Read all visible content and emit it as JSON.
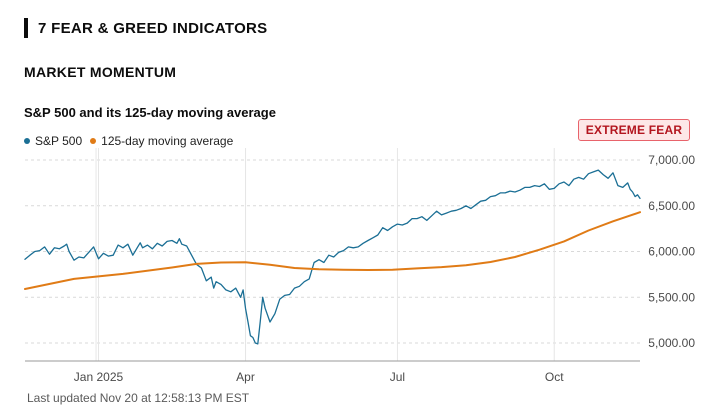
{
  "section": {
    "title": "7 FEAR & GREED INDICATORS"
  },
  "subsection": {
    "title": "MARKET MOMENTUM"
  },
  "legend": {
    "sp500": "S&P 500",
    "ma": "125-day moving average"
  },
  "badge": {
    "label": "EXTREME FEAR",
    "color": "#e8636b"
  },
  "footer": {
    "updated": "Last updated Nov 20 at 12:58:13 PM EST"
  },
  "colors": {
    "sp500": "#1b6f95",
    "ma": "#e07b16",
    "grid": "#d9d9d9",
    "axis": "#9a9a9a"
  },
  "chart_data": {
    "type": "line",
    "title": "S&P 500 and its 125-day moving average",
    "xlabel": "",
    "ylabel": "",
    "x_unit": "trading days from 2024-11-20",
    "xlim": [
      0,
      251
    ],
    "ylim": [
      4800,
      7000
    ],
    "y_ticks": [
      5000,
      5500,
      6000,
      6500,
      7000
    ],
    "y_tick_labels": [
      "5,000.00",
      "5,500.00",
      "6,000.00",
      "6,500.00",
      "7,000.00"
    ],
    "x_ticks": [
      {
        "label": "",
        "x": 29
      },
      {
        "label": "Jan 2025",
        "x": 30
      },
      {
        "label": "Apr",
        "x": 90
      },
      {
        "label": "Jul",
        "x": 152
      },
      {
        "label": "Oct",
        "x": 216
      }
    ],
    "grid": true,
    "series": [
      {
        "name": "S&P 500",
        "x": [
          0,
          2,
          4,
          6,
          8,
          10,
          12,
          14,
          16,
          17,
          18,
          20,
          22,
          24,
          26,
          28,
          30,
          32,
          34,
          36,
          38,
          40,
          42,
          44,
          46,
          47,
          48,
          50,
          52,
          54,
          56,
          58,
          60,
          62,
          63,
          64,
          66,
          68,
          70,
          72,
          74,
          76,
          77,
          78,
          80,
          82,
          84,
          86,
          88,
          89,
          90,
          91,
          92,
          93,
          94,
          95,
          96,
          97,
          98,
          100,
          102,
          104,
          106,
          108,
          110,
          112,
          114,
          116,
          118,
          120,
          122,
          124,
          126,
          128,
          130,
          132,
          134,
          136,
          138,
          140,
          142,
          144,
          146,
          148,
          150,
          152,
          154,
          156,
          158,
          160,
          162,
          164,
          166,
          168,
          170,
          172,
          174,
          176,
          178,
          180,
          182,
          184,
          186,
          188,
          190,
          192,
          194,
          196,
          198,
          200,
          202,
          204,
          206,
          208,
          210,
          212,
          214,
          216,
          218,
          220,
          222,
          224,
          226,
          228,
          230,
          232,
          234,
          236,
          238,
          240,
          242,
          244,
          246,
          247,
          248,
          249,
          250,
          251
        ],
        "values": [
          5915,
          5960,
          6000,
          6010,
          6050,
          5970,
          6040,
          6030,
          6060,
          6080,
          6000,
          5905,
          5940,
          5930,
          5990,
          6050,
          5920,
          5980,
          5950,
          5960,
          6070,
          6040,
          6080,
          5960,
          6050,
          6095,
          6040,
          6070,
          6030,
          6090,
          6060,
          6110,
          6120,
          6090,
          6140,
          6080,
          6060,
          5960,
          5860,
          5820,
          5680,
          5720,
          5600,
          5670,
          5640,
          5580,
          5560,
          5600,
          5500,
          5580,
          5380,
          5230,
          5080,
          5060,
          5000,
          4990,
          5230,
          5500,
          5380,
          5230,
          5320,
          5480,
          5520,
          5530,
          5600,
          5620,
          5670,
          5700,
          5880,
          5910,
          5880,
          5960,
          5940,
          5990,
          6010,
          6050,
          6040,
          6050,
          6090,
          6120,
          6150,
          6180,
          6260,
          6230,
          6270,
          6300,
          6290,
          6310,
          6360,
          6360,
          6380,
          6340,
          6390,
          6440,
          6400,
          6420,
          6440,
          6450,
          6470,
          6500,
          6470,
          6510,
          6550,
          6560,
          6600,
          6610,
          6640,
          6640,
          6660,
          6650,
          6670,
          6700,
          6700,
          6720,
          6710,
          6740,
          6680,
          6690,
          6740,
          6760,
          6720,
          6790,
          6810,
          6790,
          6850,
          6870,
          6890,
          6840,
          6800,
          6860,
          6720,
          6700,
          6750,
          6680,
          6650,
          6600,
          6620,
          6580
        ]
      },
      {
        "name": "125-day moving average",
        "x": [
          0,
          20,
          40,
          60,
          70,
          80,
          90,
          100,
          110,
          120,
          130,
          140,
          150,
          160,
          170,
          180,
          190,
          200,
          210,
          220,
          230,
          240,
          251
        ],
        "values": [
          5590,
          5700,
          5755,
          5825,
          5865,
          5880,
          5882,
          5855,
          5820,
          5805,
          5800,
          5798,
          5800,
          5815,
          5830,
          5850,
          5885,
          5940,
          6020,
          6110,
          6230,
          6330,
          6430
        ]
      }
    ]
  }
}
